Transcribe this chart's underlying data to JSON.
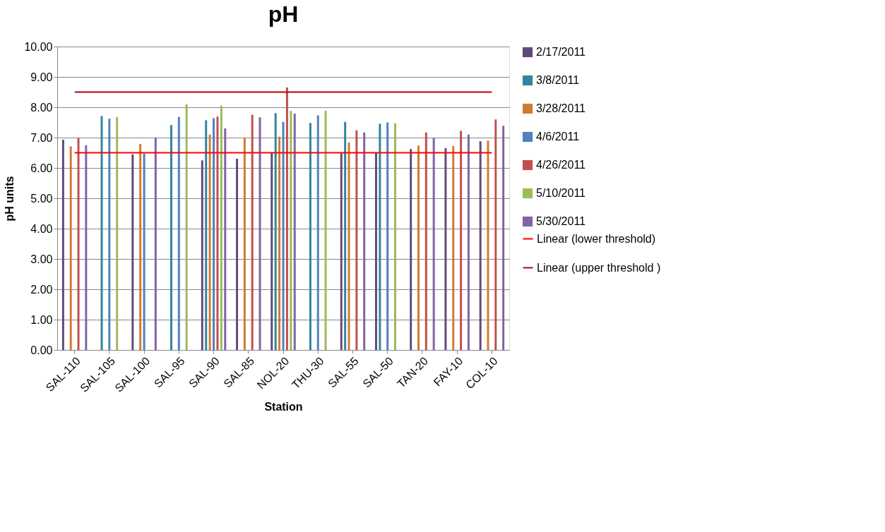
{
  "chart_data": {
    "type": "bar",
    "title": "pH",
    "xlabel": "Station",
    "ylabel": "pH units",
    "categories": [
      "SAL-110",
      "SAL-105",
      "SAL-100",
      "SAL-95",
      "SAL-90",
      "SAL-85",
      "NOL-20",
      "THU-30",
      "SAL-55",
      "SAL-50",
      "TAN-20",
      "FAY-10",
      "COL-10"
    ],
    "series": [
      {
        "name": "2/17/2011",
        "color": "#604a7b",
        "values": [
          6.93,
          null,
          6.45,
          null,
          6.25,
          6.3,
          6.5,
          null,
          6.48,
          6.5,
          6.62,
          6.65,
          6.88
        ]
      },
      {
        "name": "3/8/2011",
        "color": "#31859c",
        "values": [
          null,
          7.71,
          null,
          7.41,
          7.57,
          null,
          7.81,
          7.48,
          7.52,
          7.46,
          null,
          null,
          null
        ]
      },
      {
        "name": "3/28/2011",
        "color": "#d07b32",
        "values": [
          6.71,
          null,
          6.79,
          null,
          7.1,
          7.0,
          7.03,
          null,
          6.84,
          null,
          6.74,
          6.72,
          6.9
        ]
      },
      {
        "name": "4/6/2011",
        "color": "#4f81bd",
        "values": [
          null,
          7.62,
          6.47,
          7.68,
          7.64,
          null,
          7.52,
          7.73,
          null,
          7.5,
          null,
          null,
          null
        ]
      },
      {
        "name": "4/26/2011",
        "color": "#c0504d",
        "values": [
          6.99,
          null,
          null,
          null,
          7.69,
          7.75,
          8.65,
          null,
          7.24,
          null,
          7.17,
          7.22,
          7.6
        ]
      },
      {
        "name": "5/10/2011",
        "color": "#9bbb59",
        "values": [
          null,
          7.68,
          null,
          8.1,
          8.05,
          null,
          7.88,
          7.89,
          null,
          7.47,
          null,
          null,
          null
        ]
      },
      {
        "name": "5/30/2011",
        "color": "#8064a2",
        "values": [
          6.75,
          null,
          7.0,
          null,
          7.3,
          7.67,
          7.79,
          null,
          7.17,
          null,
          7.0,
          7.1,
          7.39
        ]
      },
      {
        "name": "Linear (lower threshold)",
        "type": "line",
        "color": "#ff0000",
        "values": [
          6.5,
          6.5,
          6.5,
          6.5,
          6.5,
          6.5,
          6.5,
          6.5,
          6.5,
          6.5,
          6.5,
          6.5,
          6.5
        ]
      },
      {
        "name": "Linear (upper threshold )",
        "type": "line",
        "color": "#c00000",
        "values": [
          8.5,
          8.5,
          8.5,
          8.5,
          8.5,
          8.5,
          8.5,
          8.5,
          8.5,
          8.5,
          8.5,
          8.5,
          8.5
        ]
      }
    ],
    "ylim": [
      0,
      10
    ],
    "yticks": [
      {
        "value": 0,
        "label": "0.00"
      },
      {
        "value": 1,
        "label": "1.00"
      },
      {
        "value": 2,
        "label": "2.00"
      },
      {
        "value": 3,
        "label": "3.00"
      },
      {
        "value": 4,
        "label": "4.00"
      },
      {
        "value": 5,
        "label": "5.00"
      },
      {
        "value": 6,
        "label": "6.00"
      },
      {
        "value": 7,
        "label": "7.00"
      },
      {
        "value": 8,
        "label": "8.00"
      },
      {
        "value": 9,
        "label": "9.00"
      },
      {
        "value": 10,
        "label": "10.00"
      }
    ],
    "grid": "y",
    "legend": "right"
  }
}
